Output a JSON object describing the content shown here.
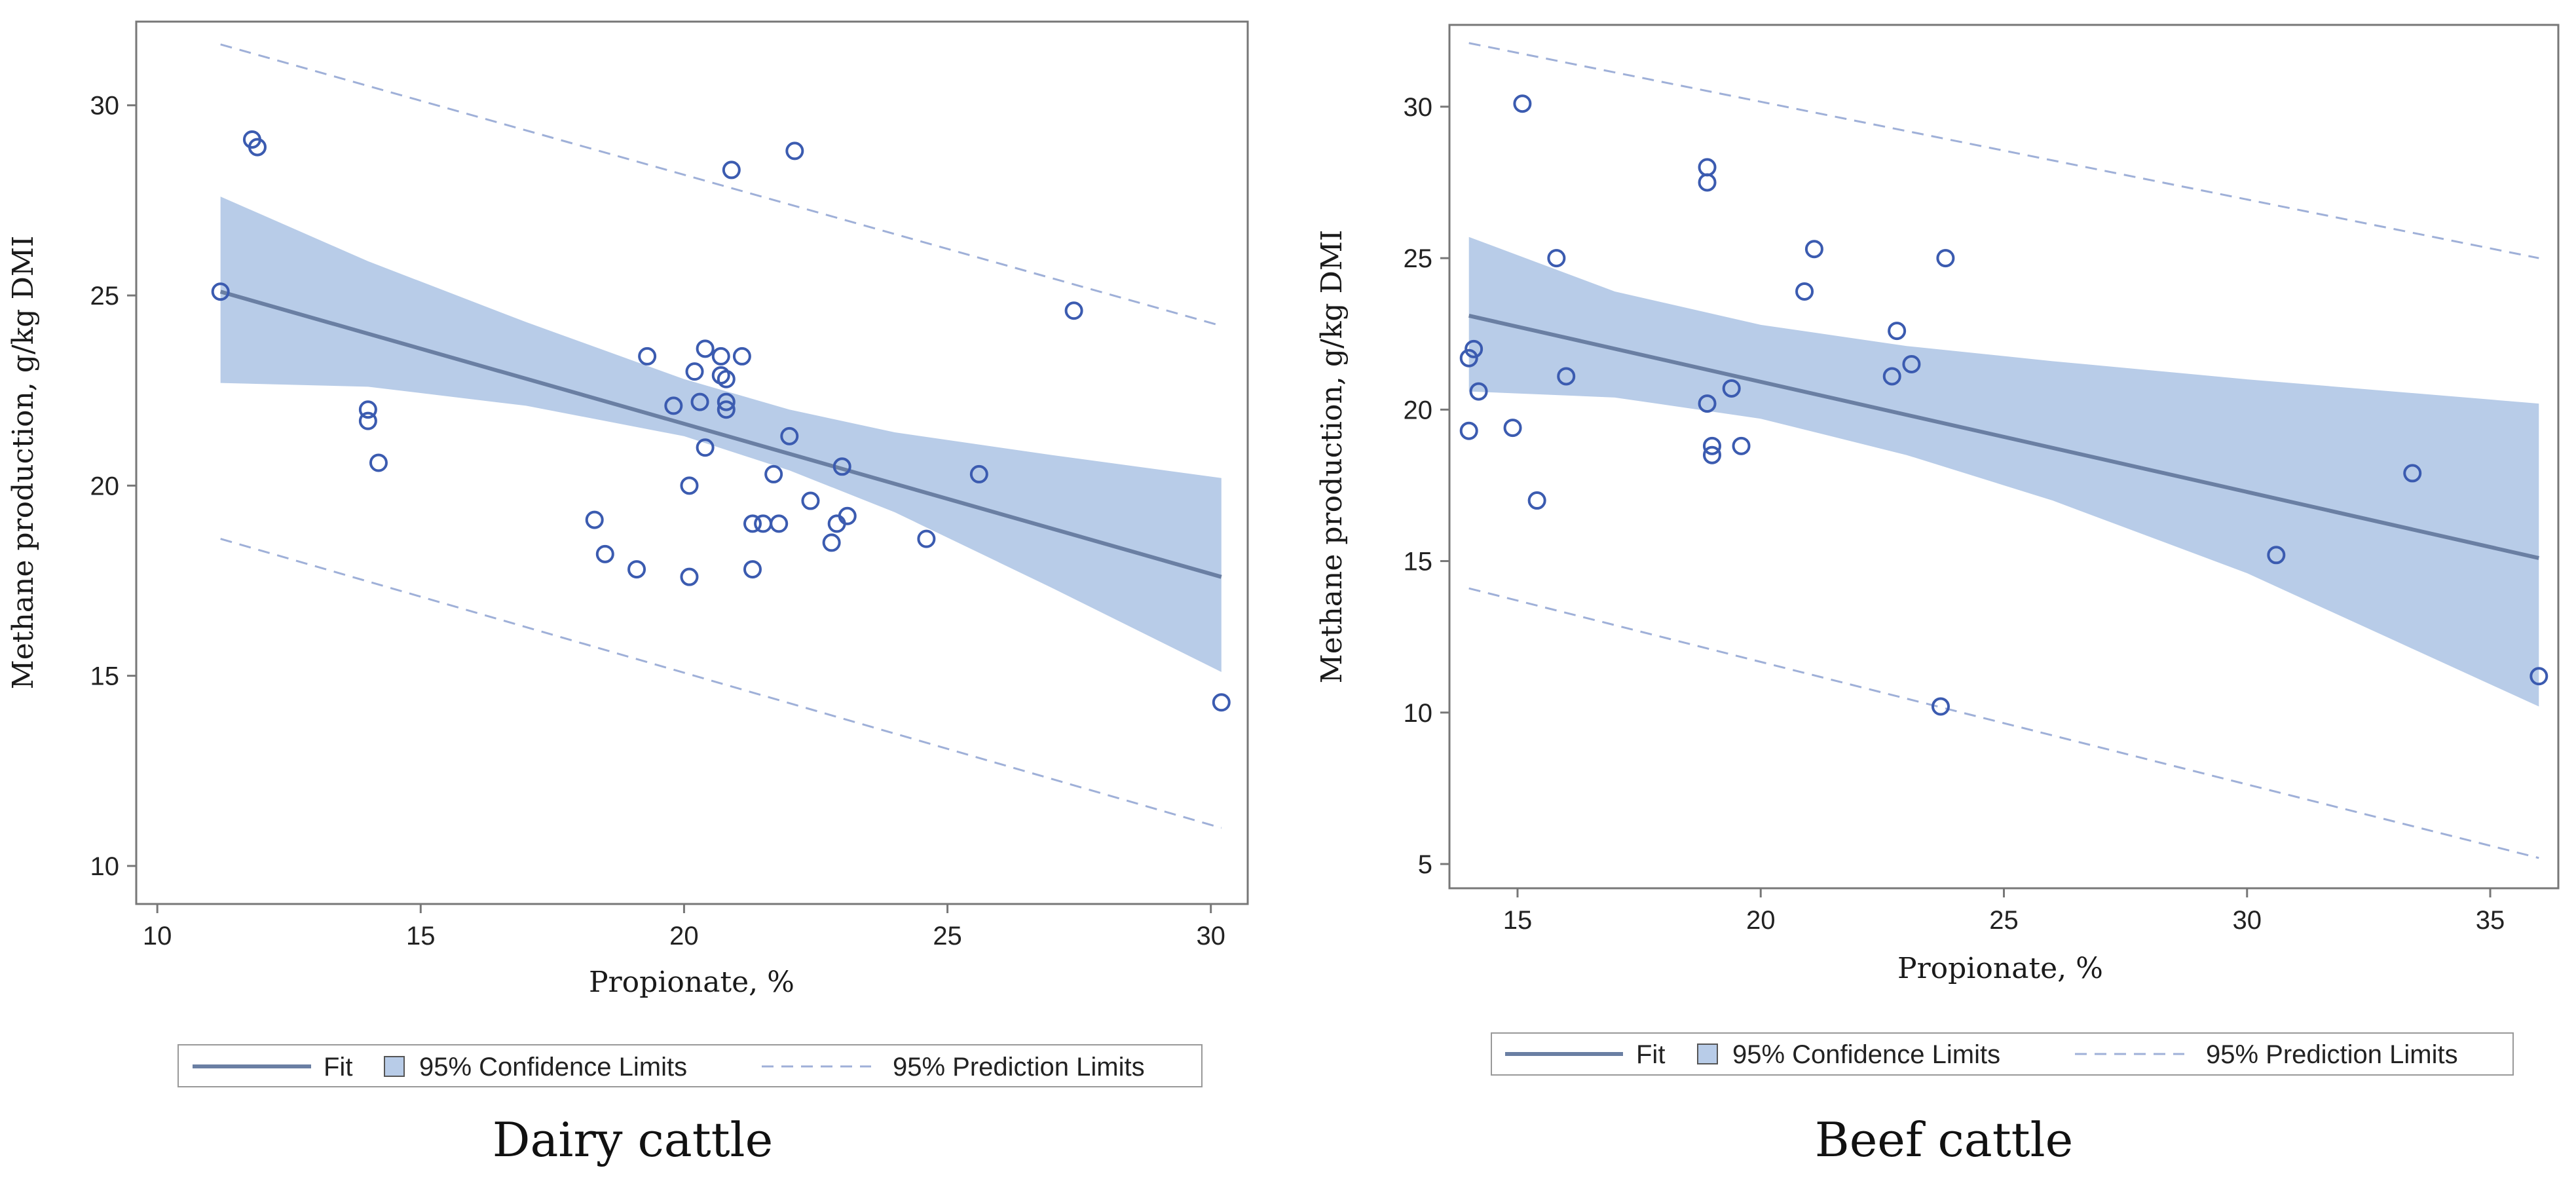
{
  "figure": {
    "colors": {
      "fit": "#6a7fa3",
      "band": "#b8cce8",
      "prediction": "#9fb0d8",
      "point": "#3b5bb0",
      "frame": "#777777"
    }
  },
  "chart_data": [
    {
      "type": "scatter",
      "caption": "Dairy cattle",
      "xlabel": "Propionate, %",
      "ylabel": "Methane production, g/kg DMI",
      "xlim": [
        9.6,
        30.7
      ],
      "ylim": [
        9.0,
        32.2
      ],
      "xticks": [
        10,
        15,
        20,
        25,
        30
      ],
      "yticks": [
        10,
        15,
        20,
        25,
        30
      ],
      "fit": {
        "x": [
          11.2,
          30.2
        ],
        "y": [
          25.1,
          17.6
        ]
      },
      "confidence_band": {
        "x": [
          11.2,
          14,
          17,
          20,
          22,
          24,
          27,
          30.2
        ],
        "upper": [
          27.6,
          25.9,
          24.3,
          22.8,
          22.0,
          21.4,
          20.8,
          20.2
        ],
        "lower": [
          22.7,
          22.6,
          22.1,
          21.3,
          20.4,
          19.3,
          17.3,
          15.1
        ]
      },
      "prediction_upper": {
        "x": [
          11.2,
          30.2
        ],
        "y": [
          31.6,
          24.2
        ]
      },
      "prediction_lower": {
        "x": [
          11.2,
          30.2
        ],
        "y": [
          18.6,
          11.0
        ]
      },
      "points": [
        {
          "x": 11.2,
          "y": 25.1
        },
        {
          "x": 11.8,
          "y": 29.1
        },
        {
          "x": 11.9,
          "y": 28.9
        },
        {
          "x": 14.0,
          "y": 22.0
        },
        {
          "x": 14.0,
          "y": 21.7
        },
        {
          "x": 14.2,
          "y": 20.6
        },
        {
          "x": 18.3,
          "y": 19.1
        },
        {
          "x": 18.5,
          "y": 18.2
        },
        {
          "x": 19.1,
          "y": 17.8
        },
        {
          "x": 19.3,
          "y": 23.4
        },
        {
          "x": 19.8,
          "y": 22.1
        },
        {
          "x": 20.1,
          "y": 20.0
        },
        {
          "x": 20.1,
          "y": 17.6
        },
        {
          "x": 20.2,
          "y": 23.0
        },
        {
          "x": 20.3,
          "y": 22.2
        },
        {
          "x": 20.4,
          "y": 23.6
        },
        {
          "x": 20.4,
          "y": 21.0
        },
        {
          "x": 20.7,
          "y": 23.4
        },
        {
          "x": 20.7,
          "y": 22.9
        },
        {
          "x": 20.8,
          "y": 22.8
        },
        {
          "x": 20.8,
          "y": 22.2
        },
        {
          "x": 20.8,
          "y": 22.0
        },
        {
          "x": 20.9,
          "y": 28.3
        },
        {
          "x": 21.1,
          "y": 23.4
        },
        {
          "x": 21.3,
          "y": 19.0
        },
        {
          "x": 21.3,
          "y": 17.8
        },
        {
          "x": 21.5,
          "y": 19.0
        },
        {
          "x": 21.7,
          "y": 20.3
        },
        {
          "x": 21.8,
          "y": 19.0
        },
        {
          "x": 22.0,
          "y": 21.3
        },
        {
          "x": 22.1,
          "y": 28.8
        },
        {
          "x": 22.4,
          "y": 19.6
        },
        {
          "x": 22.8,
          "y": 18.5
        },
        {
          "x": 22.9,
          "y": 19.0
        },
        {
          "x": 23.0,
          "y": 20.5
        },
        {
          "x": 23.1,
          "y": 19.2
        },
        {
          "x": 24.6,
          "y": 18.6
        },
        {
          "x": 25.6,
          "y": 20.3
        },
        {
          "x": 27.4,
          "y": 24.6
        },
        {
          "x": 30.2,
          "y": 14.3
        }
      ]
    },
    {
      "type": "scatter",
      "caption": "Beef cattle",
      "xlabel": "Propionate, %",
      "ylabel": "Methane production, g/kg DMI",
      "xlim": [
        13.6,
        36.4
      ],
      "ylim": [
        4.2,
        32.7
      ],
      "xticks": [
        15,
        20,
        25,
        30,
        35
      ],
      "yticks": [
        5,
        10,
        15,
        20,
        25,
        30
      ],
      "fit": {
        "x": [
          14.0,
          36.0
        ],
        "y": [
          23.1,
          15.1
        ]
      },
      "confidence_band": {
        "x": [
          14,
          17,
          20,
          23,
          26,
          30,
          33,
          36
        ],
        "upper": [
          25.7,
          23.9,
          22.8,
          22.1,
          21.6,
          21.0,
          20.6,
          20.2
        ],
        "lower": [
          20.6,
          20.4,
          19.7,
          18.5,
          17.0,
          14.6,
          12.4,
          10.2
        ]
      },
      "prediction_upper": {
        "x": [
          14.0,
          36.0
        ],
        "y": [
          32.1,
          25.0
        ]
      },
      "prediction_lower": {
        "x": [
          14.0,
          36.0
        ],
        "y": [
          14.1,
          5.2
        ]
      },
      "points": [
        {
          "x": 14.0,
          "y": 21.7
        },
        {
          "x": 14.1,
          "y": 22.0
        },
        {
          "x": 14.0,
          "y": 19.3
        },
        {
          "x": 14.2,
          "y": 20.6
        },
        {
          "x": 14.9,
          "y": 19.4
        },
        {
          "x": 15.1,
          "y": 30.1
        },
        {
          "x": 15.4,
          "y": 17.0
        },
        {
          "x": 15.8,
          "y": 25.0
        },
        {
          "x": 16.0,
          "y": 21.1
        },
        {
          "x": 18.9,
          "y": 28.0
        },
        {
          "x": 18.9,
          "y": 27.5
        },
        {
          "x": 18.9,
          "y": 20.2
        },
        {
          "x": 19.0,
          "y": 18.8
        },
        {
          "x": 19.0,
          "y": 18.5
        },
        {
          "x": 19.4,
          "y": 20.7
        },
        {
          "x": 19.6,
          "y": 18.8
        },
        {
          "x": 20.9,
          "y": 23.9
        },
        {
          "x": 21.1,
          "y": 25.3
        },
        {
          "x": 22.7,
          "y": 21.1
        },
        {
          "x": 22.8,
          "y": 22.6
        },
        {
          "x": 23.1,
          "y": 21.5
        },
        {
          "x": 23.7,
          "y": 10.2
        },
        {
          "x": 23.8,
          "y": 25.0
        },
        {
          "x": 30.6,
          "y": 15.2
        },
        {
          "x": 33.4,
          "y": 17.9
        },
        {
          "x": 36.0,
          "y": 11.2
        }
      ]
    }
  ],
  "legend": {
    "fit_label": "Fit",
    "confidence_label": "95% Confidence Limits",
    "prediction_label": "95% Prediction Limits"
  }
}
